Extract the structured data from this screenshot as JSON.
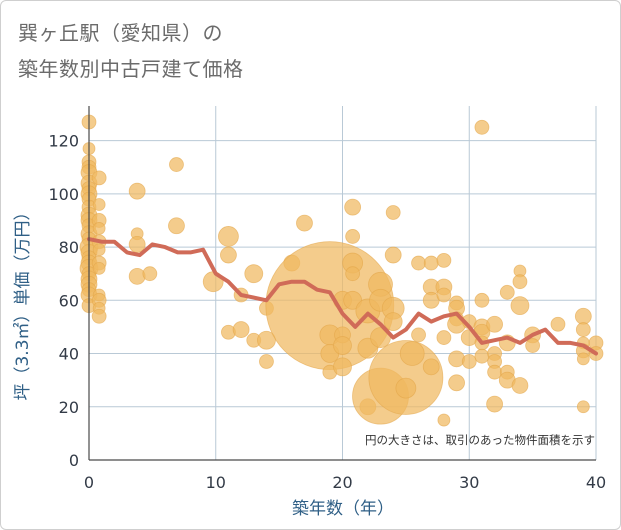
{
  "title_lines": [
    "巽ヶ丘駅（愛知県）の",
    "築年数別中古戸建て価格"
  ],
  "chart_data": {
    "type": "scatter",
    "xlabel": "築年数（年）",
    "ylabel": "坪（3.3㎡）単価（万円）",
    "xlim": [
      0,
      40
    ],
    "ylim": [
      0,
      133
    ],
    "xticks": [
      0,
      10,
      20,
      30,
      40
    ],
    "yticks": [
      0,
      20,
      40,
      60,
      80,
      100,
      120
    ],
    "grid": true,
    "annotation": "円の大きさは、取引のあった物件面積を示す",
    "colors": {
      "bubble": "#f0b860",
      "line": "#d06b58",
      "grid": "#b9c9d6",
      "axis": "#4a4a4a"
    },
    "series": [
      {
        "kind": "bubbles",
        "points": [
          {
            "x": 0,
            "y": 127,
            "s": 7
          },
          {
            "x": 0,
            "y": 117,
            "s": 6
          },
          {
            "x": 0,
            "y": 112,
            "s": 7
          },
          {
            "x": 0,
            "y": 110,
            "s": 7
          },
          {
            "x": 0,
            "y": 108,
            "s": 8
          },
          {
            "x": 0,
            "y": 104,
            "s": 8
          },
          {
            "x": 0,
            "y": 102,
            "s": 7
          },
          {
            "x": 0,
            "y": 100,
            "s": 8
          },
          {
            "x": 0,
            "y": 98,
            "s": 7
          },
          {
            "x": 0,
            "y": 95,
            "s": 7
          },
          {
            "x": 0,
            "y": 92,
            "s": 8
          },
          {
            "x": 0,
            "y": 90,
            "s": 8
          },
          {
            "x": 0,
            "y": 88,
            "s": 7
          },
          {
            "x": 0,
            "y": 85,
            "s": 8
          },
          {
            "x": 0,
            "y": 83,
            "s": 7
          },
          {
            "x": 0,
            "y": 80,
            "s": 9
          },
          {
            "x": 0,
            "y": 78,
            "s": 8
          },
          {
            "x": 0,
            "y": 76,
            "s": 7
          },
          {
            "x": 0,
            "y": 74,
            "s": 8
          },
          {
            "x": 0,
            "y": 72,
            "s": 9
          },
          {
            "x": 0,
            "y": 70,
            "s": 7
          },
          {
            "x": 0,
            "y": 68,
            "s": 8
          },
          {
            "x": 0,
            "y": 66,
            "s": 8
          },
          {
            "x": 0,
            "y": 64,
            "s": 7
          },
          {
            "x": 0,
            "y": 62,
            "s": 8
          },
          {
            "x": 0,
            "y": 58,
            "s": 7
          },
          {
            "x": 0.8,
            "y": 106,
            "s": 7
          },
          {
            "x": 0.8,
            "y": 96,
            "s": 6
          },
          {
            "x": 0.8,
            "y": 90,
            "s": 7
          },
          {
            "x": 0.8,
            "y": 87,
            "s": 6
          },
          {
            "x": 0.8,
            "y": 82,
            "s": 7
          },
          {
            "x": 0.8,
            "y": 79,
            "s": 6
          },
          {
            "x": 0.8,
            "y": 74,
            "s": 7
          },
          {
            "x": 0.8,
            "y": 72,
            "s": 6
          },
          {
            "x": 0.8,
            "y": 62,
            "s": 6
          },
          {
            "x": 0.8,
            "y": 60,
            "s": 7
          },
          {
            "x": 0.8,
            "y": 57,
            "s": 6
          },
          {
            "x": 0.8,
            "y": 54,
            "s": 7
          },
          {
            "x": 3.8,
            "y": 101,
            "s": 8
          },
          {
            "x": 3.8,
            "y": 85,
            "s": 6
          },
          {
            "x": 3.8,
            "y": 81,
            "s": 8
          },
          {
            "x": 3.8,
            "y": 69,
            "s": 8
          },
          {
            "x": 4.8,
            "y": 70,
            "s": 7
          },
          {
            "x": 6.9,
            "y": 111,
            "s": 7
          },
          {
            "x": 6.9,
            "y": 88,
            "s": 8
          },
          {
            "x": 9.8,
            "y": 67,
            "s": 10
          },
          {
            "x": 11,
            "y": 84,
            "s": 10
          },
          {
            "x": 11,
            "y": 77,
            "s": 8
          },
          {
            "x": 11,
            "y": 48,
            "s": 7
          },
          {
            "x": 12,
            "y": 62,
            "s": 7
          },
          {
            "x": 12,
            "y": 49,
            "s": 8
          },
          {
            "x": 13,
            "y": 70,
            "s": 9
          },
          {
            "x": 13,
            "y": 45,
            "s": 7
          },
          {
            "x": 14,
            "y": 57,
            "s": 7
          },
          {
            "x": 14,
            "y": 45,
            "s": 9
          },
          {
            "x": 14,
            "y": 37,
            "s": 7
          },
          {
            "x": 16,
            "y": 74,
            "s": 8
          },
          {
            "x": 17,
            "y": 89,
            "s": 8
          },
          {
            "x": 19,
            "y": 58,
            "s": 64
          },
          {
            "x": 19,
            "y": 47,
            "s": 10
          },
          {
            "x": 19,
            "y": 40,
            "s": 9
          },
          {
            "x": 19,
            "y": 33,
            "s": 7
          },
          {
            "x": 20,
            "y": 60,
            "s": 9
          },
          {
            "x": 20,
            "y": 47,
            "s": 8
          },
          {
            "x": 20,
            "y": 43,
            "s": 9
          },
          {
            "x": 20,
            "y": 35,
            "s": 9
          },
          {
            "x": 20.8,
            "y": 95,
            "s": 8
          },
          {
            "x": 20.8,
            "y": 84,
            "s": 7
          },
          {
            "x": 20.8,
            "y": 74,
            "s": 10
          },
          {
            "x": 20.8,
            "y": 70,
            "s": 7
          },
          {
            "x": 20.8,
            "y": 60,
            "s": 9
          },
          {
            "x": 22,
            "y": 56,
            "s": 12
          },
          {
            "x": 22,
            "y": 42,
            "s": 10
          },
          {
            "x": 22,
            "y": 20,
            "s": 8
          },
          {
            "x": 23,
            "y": 66,
            "s": 12
          },
          {
            "x": 23,
            "y": 60,
            "s": 11
          },
          {
            "x": 23,
            "y": 46,
            "s": 10
          },
          {
            "x": 23,
            "y": 24,
            "s": 28
          },
          {
            "x": 24,
            "y": 93,
            "s": 7
          },
          {
            "x": 24,
            "y": 77,
            "s": 8
          },
          {
            "x": 24,
            "y": 57,
            "s": 11
          },
          {
            "x": 24,
            "y": 52,
            "s": 9
          },
          {
            "x": 25,
            "y": 31,
            "s": 37
          },
          {
            "x": 25,
            "y": 27,
            "s": 10
          },
          {
            "x": 25.5,
            "y": 40,
            "s": 12
          },
          {
            "x": 26,
            "y": 74,
            "s": 7
          },
          {
            "x": 26,
            "y": 47,
            "s": 7
          },
          {
            "x": 27,
            "y": 74,
            "s": 7
          },
          {
            "x": 27,
            "y": 65,
            "s": 8
          },
          {
            "x": 27,
            "y": 60,
            "s": 8
          },
          {
            "x": 27,
            "y": 35,
            "s": 8
          },
          {
            "x": 28,
            "y": 75,
            "s": 7
          },
          {
            "x": 28,
            "y": 65,
            "s": 8
          },
          {
            "x": 28,
            "y": 62,
            "s": 7
          },
          {
            "x": 28,
            "y": 46,
            "s": 7
          },
          {
            "x": 28,
            "y": 15,
            "s": 6
          },
          {
            "x": 29,
            "y": 59,
            "s": 7
          },
          {
            "x": 29,
            "y": 57,
            "s": 8
          },
          {
            "x": 29,
            "y": 53,
            "s": 7
          },
          {
            "x": 29,
            "y": 51,
            "s": 9
          },
          {
            "x": 29,
            "y": 38,
            "s": 8
          },
          {
            "x": 29,
            "y": 29,
            "s": 8
          },
          {
            "x": 30,
            "y": 52,
            "s": 7
          },
          {
            "x": 30,
            "y": 46,
            "s": 8
          },
          {
            "x": 30,
            "y": 37,
            "s": 7
          },
          {
            "x": 31,
            "y": 125,
            "s": 7
          },
          {
            "x": 31,
            "y": 60,
            "s": 7
          },
          {
            "x": 31,
            "y": 50,
            "s": 8
          },
          {
            "x": 31,
            "y": 48,
            "s": 8
          },
          {
            "x": 31,
            "y": 44,
            "s": 7
          },
          {
            "x": 31,
            "y": 39,
            "s": 7
          },
          {
            "x": 32,
            "y": 51,
            "s": 8
          },
          {
            "x": 32,
            "y": 40,
            "s": 7
          },
          {
            "x": 32,
            "y": 37,
            "s": 7
          },
          {
            "x": 32,
            "y": 33,
            "s": 7
          },
          {
            "x": 32,
            "y": 21,
            "s": 8
          },
          {
            "x": 33,
            "y": 63,
            "s": 7
          },
          {
            "x": 33,
            "y": 44,
            "s": 8
          },
          {
            "x": 33,
            "y": 33,
            "s": 7
          },
          {
            "x": 33,
            "y": 30,
            "s": 8
          },
          {
            "x": 34,
            "y": 71,
            "s": 6
          },
          {
            "x": 34,
            "y": 67,
            "s": 7
          },
          {
            "x": 34,
            "y": 58,
            "s": 9
          },
          {
            "x": 34,
            "y": 28,
            "s": 8
          },
          {
            "x": 35,
            "y": 47,
            "s": 8
          },
          {
            "x": 35,
            "y": 43,
            "s": 7
          },
          {
            "x": 37,
            "y": 51,
            "s": 7
          },
          {
            "x": 39,
            "y": 54,
            "s": 8
          },
          {
            "x": 39,
            "y": 49,
            "s": 7
          },
          {
            "x": 39,
            "y": 44,
            "s": 6
          },
          {
            "x": 39,
            "y": 41,
            "s": 7
          },
          {
            "x": 39,
            "y": 38,
            "s": 6
          },
          {
            "x": 39,
            "y": 20,
            "s": 6
          },
          {
            "x": 40,
            "y": 44,
            "s": 7
          },
          {
            "x": 40,
            "y": 40,
            "s": 7
          }
        ]
      },
      {
        "kind": "line",
        "x": [
          0,
          1,
          2,
          3,
          4,
          5,
          6,
          7,
          8,
          9,
          10,
          11,
          12,
          13,
          14,
          15,
          16,
          17,
          18,
          19,
          20,
          21,
          22,
          23,
          24,
          25,
          26,
          27,
          28,
          29,
          30,
          31,
          32,
          33,
          34,
          35,
          36,
          37,
          38,
          39,
          40
        ],
        "y": [
          83,
          82,
          82,
          78,
          77,
          81,
          80,
          78,
          78,
          79,
          70,
          67,
          62,
          61,
          60,
          66,
          67,
          67,
          64,
          63,
          55,
          50,
          55,
          51,
          46,
          49,
          55,
          52,
          54,
          55,
          50,
          44,
          45,
          46,
          44,
          47,
          49,
          44,
          44,
          43,
          40
        ]
      }
    ]
  }
}
